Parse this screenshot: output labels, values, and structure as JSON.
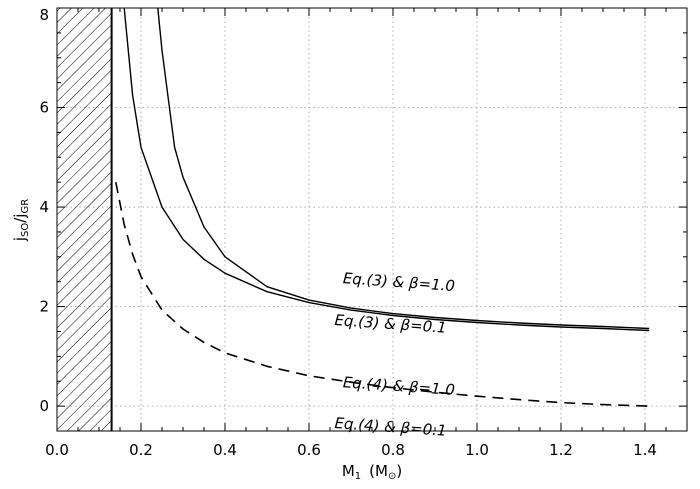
{
  "chart_data": {
    "type": "line",
    "title": "",
    "xlabel": {
      "main": "M",
      "sub": "1",
      "unit": "(M",
      "unit_sub": "⊙",
      "unit_close": ")"
    },
    "ylabel": {
      "j1": "j",
      "sub1": "SO",
      "slash": "/",
      "j2": "j",
      "sub2": "GR"
    },
    "xlim": [
      0.0,
      1.5
    ],
    "ylim": [
      -0.5,
      8.0
    ],
    "xticks": [
      0.0,
      0.2,
      0.4,
      0.6,
      0.8,
      1.0,
      1.2,
      1.4
    ],
    "xtick_labels": [
      "0.0",
      "0.2",
      "0.4",
      "0.6",
      "0.8",
      "1.0",
      "1.2",
      "1.4"
    ],
    "yticks": [
      0,
      2,
      4,
      6,
      8
    ],
    "ytick_labels": [
      "0",
      "2",
      "4",
      "6",
      "8"
    ],
    "grid": true,
    "shaded_region": {
      "x_from": 0.0,
      "x_to": 0.13,
      "pattern": "hatched"
    },
    "series": [
      {
        "style": "solid",
        "x": [
          0.16,
          0.18,
          0.2,
          0.25,
          0.3,
          0.35,
          0.4,
          0.5,
          0.6,
          0.7,
          0.8,
          0.9,
          1.0,
          1.1,
          1.2,
          1.3,
          1.41
        ],
        "y": [
          8.0,
          6.25,
          5.2,
          4.0,
          3.35,
          2.95,
          2.67,
          2.3,
          2.08,
          1.93,
          1.82,
          1.74,
          1.68,
          1.63,
          1.59,
          1.56,
          1.52
        ]
      },
      {
        "style": "solid",
        "x": [
          0.24,
          0.25,
          0.28,
          0.3,
          0.35,
          0.4,
          0.5,
          0.6,
          0.7,
          0.8,
          0.9,
          1.0,
          1.1,
          1.2,
          1.3,
          1.41
        ],
        "y": [
          8.0,
          7.15,
          5.2,
          4.6,
          3.6,
          3.0,
          2.4,
          2.13,
          1.97,
          1.86,
          1.78,
          1.72,
          1.67,
          1.63,
          1.6,
          1.56
        ]
      },
      {
        "style": "dashed",
        "x": [
          0.14,
          0.16,
          0.18,
          0.2,
          0.25,
          0.3,
          0.35,
          0.4,
          0.5,
          0.6,
          0.7,
          0.8,
          0.9,
          1.0,
          1.1,
          1.2,
          1.3,
          1.41
        ],
        "y": [
          4.5,
          3.65,
          3.05,
          2.6,
          1.93,
          1.55,
          1.28,
          1.07,
          0.8,
          0.61,
          0.48,
          0.37,
          0.28,
          0.2,
          0.13,
          0.07,
          0.03,
          0.0
        ]
      }
    ],
    "annotations": [
      {
        "text": "Eq.(3) & β=1.0",
        "x": 0.68,
        "y": 2.47
      },
      {
        "text": "Eq.(3) & β=0.1",
        "x": 0.66,
        "y": 1.63
      },
      {
        "text": "Eq.(4) & β=1.0",
        "x": 0.68,
        "y": 0.38
      },
      {
        "text": "Eq.(4) & β=0.1",
        "x": 0.66,
        "y": -0.44
      }
    ]
  }
}
